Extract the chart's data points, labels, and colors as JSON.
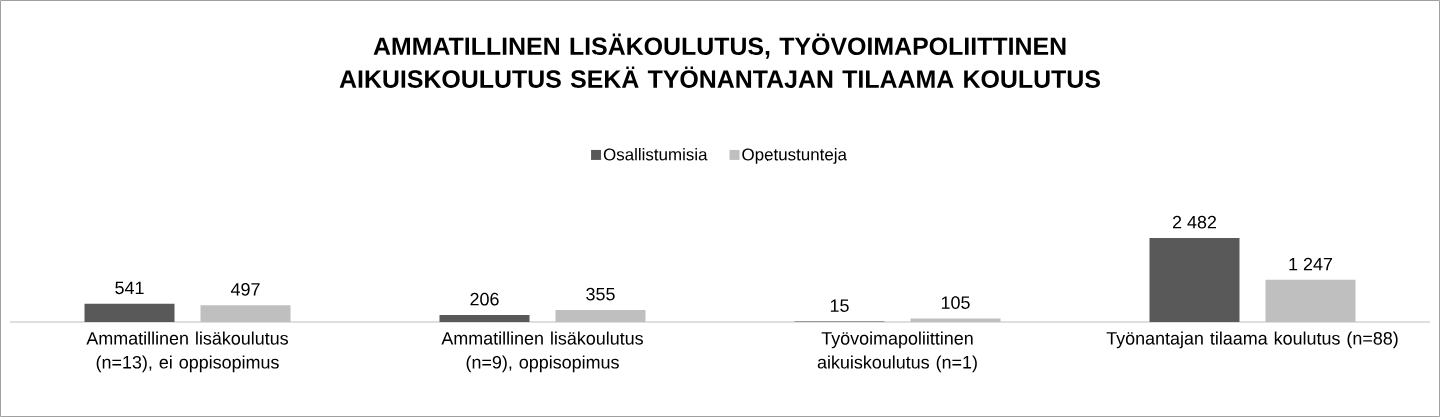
{
  "chart_data": {
    "type": "bar",
    "title": "AMMATILLINEN LISÄKOULUTUS, TYÖVOIMAPOLIITTINEN AIKUISKOULUTUS SEKÄ TYÖNANTAJAN TILAAMA KOULUTUS",
    "categories": [
      "Ammatillinen lisäkoulutus (n=13), ei oppisopimus",
      "Ammatillinen lisäkoulutus (n=9), oppisopimus",
      "Työvoimapoliittinen aikuiskoulutus (n=1)",
      "Työnantajan tilaama koulutus (n=88)"
    ],
    "series": [
      {
        "name": "Osallistumisia",
        "color": "#595959",
        "values": [
          541,
          206,
          15,
          2482
        ],
        "value_labels": [
          "541",
          "206",
          "15",
          "2 482"
        ]
      },
      {
        "name": "Opetustunteja",
        "color": "#bfbfbf",
        "values": [
          497,
          355,
          105,
          1247
        ],
        "value_labels": [
          "497",
          "355",
          "105",
          "1 247"
        ]
      }
    ],
    "legend": "top"
  }
}
